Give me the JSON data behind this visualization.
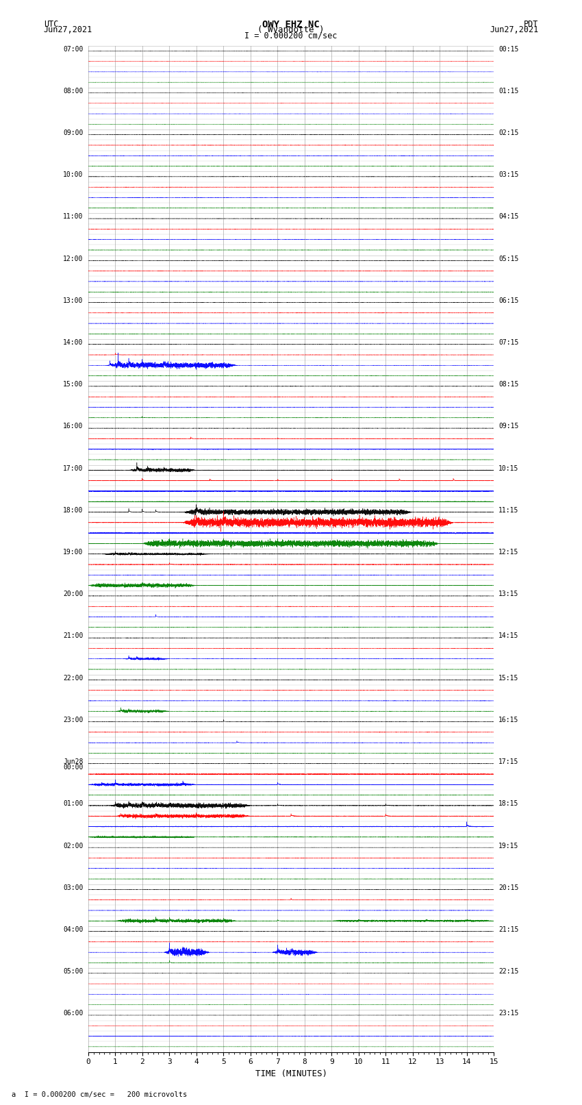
{
  "title_line1": "OWY EHZ NC",
  "title_line2": "( Wyandotte )",
  "scale_label": "I = 0.000200 cm/sec",
  "footer_label": "a  I = 0.000200 cm/sec =   200 microvolts",
  "left_date": "Jun27,2021",
  "right_date": "Jun27,2021",
  "left_tz": "UTC",
  "right_tz": "PDT",
  "xlabel": "TIME (MINUTES)",
  "xlim": [
    0,
    15
  ],
  "xticks": [
    0,
    1,
    2,
    3,
    4,
    5,
    6,
    7,
    8,
    9,
    10,
    11,
    12,
    13,
    14,
    15
  ],
  "background_color": "#ffffff",
  "grid_color": "#888888",
  "trace_colors": [
    "black",
    "red",
    "blue",
    "green"
  ],
  "figsize": [
    8.5,
    16.13
  ],
  "dpi": 100,
  "utc_hour_labels": [
    "07:00",
    "08:00",
    "09:00",
    "10:00",
    "11:00",
    "12:00",
    "13:00",
    "14:00",
    "15:00",
    "16:00",
    "17:00",
    "18:00",
    "19:00",
    "20:00",
    "21:00",
    "22:00",
    "23:00",
    "Jun28\n00:00",
    "01:00",
    "02:00",
    "03:00",
    "04:00",
    "05:00",
    "06:00"
  ],
  "pdt_hour_labels": [
    "00:15",
    "01:15",
    "02:15",
    "03:15",
    "04:15",
    "05:15",
    "06:15",
    "07:15",
    "08:15",
    "09:15",
    "10:15",
    "11:15",
    "12:15",
    "13:15",
    "14:15",
    "15:15",
    "16:15",
    "17:15",
    "18:15",
    "19:15",
    "20:15",
    "21:15",
    "22:15",
    "23:15"
  ],
  "num_hours": 24,
  "traces_per_hour": 4,
  "n_points": 9000
}
